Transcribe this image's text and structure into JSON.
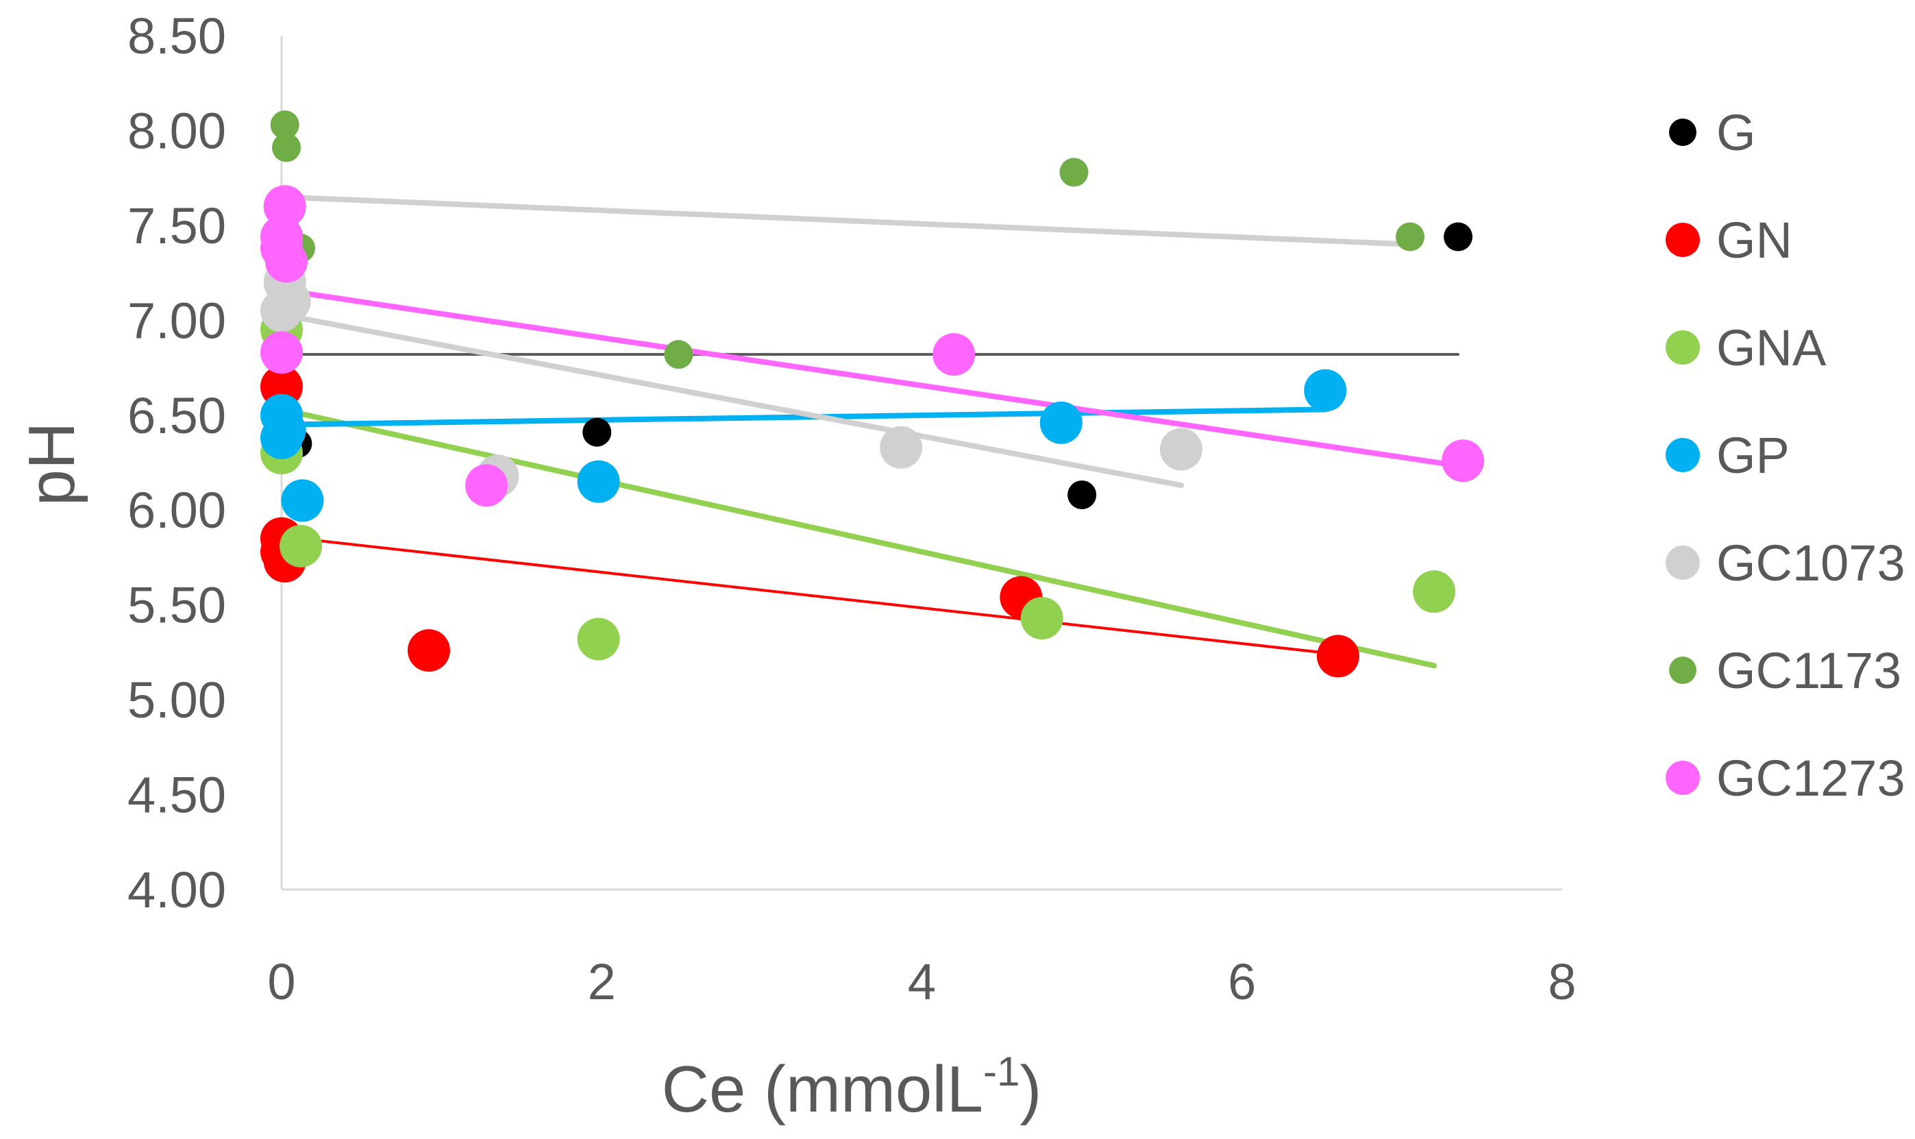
{
  "chart_data": {
    "type": "scatter",
    "title": "",
    "xlabel": "Ce (mmolL",
    "xlabel_sup": "-1",
    "xlabel_close": ")",
    "ylabel": "pH",
    "xlim": [
      0,
      8
    ],
    "ylim": [
      4.0,
      8.5
    ],
    "x_ticks": [
      0,
      2,
      4,
      6,
      8
    ],
    "x_tick_labels": [
      "0",
      "2",
      "4",
      "6",
      "8"
    ],
    "y_ticks": [
      4.0,
      4.5,
      5.0,
      5.5,
      6.0,
      6.5,
      7.0,
      7.5,
      8.0,
      8.5
    ],
    "y_tick_labels": [
      "4.00",
      "4.50",
      "5.00",
      "5.50",
      "6.00",
      "6.50",
      "7.00",
      "7.50",
      "8.00",
      "8.50"
    ],
    "grid": false,
    "legend_position": "right",
    "series": [
      {
        "name": "G",
        "color": "#000000",
        "marker_size": "small",
        "points": [
          [
            0.0,
            6.82
          ],
          [
            0.1,
            6.35
          ],
          [
            1.97,
            6.41
          ],
          [
            5.0,
            6.08
          ],
          [
            7.35,
            7.44
          ]
        ],
        "trend": {
          "x": [
            0.0,
            7.35
          ],
          "y": [
            6.82,
            6.82
          ],
          "color": "#595959",
          "width": "thin"
        }
      },
      {
        "name": "GN",
        "color": "#ff0000",
        "marker_size": "large",
        "points": [
          [
            0.0,
            6.65
          ],
          [
            0.0,
            5.85
          ],
          [
            0.0,
            5.78
          ],
          [
            0.02,
            5.73
          ],
          [
            0.92,
            5.26
          ],
          [
            4.62,
            5.54
          ],
          [
            6.6,
            5.23
          ]
        ],
        "trend": {
          "x": [
            0.0,
            6.6
          ],
          "y": [
            5.86,
            5.24
          ],
          "color": "#ff0000",
          "width": "thin"
        }
      },
      {
        "name": "GNA",
        "color": "#92d050",
        "marker_size": "large",
        "points": [
          [
            0.0,
            6.95
          ],
          [
            0.0,
            6.3
          ],
          [
            0.12,
            5.81
          ],
          [
            1.98,
            5.32
          ],
          [
            4.75,
            5.43
          ],
          [
            7.2,
            5.57
          ]
        ],
        "trend": {
          "x": [
            0.0,
            7.2
          ],
          "y": [
            6.53,
            5.18
          ],
          "color": "#92d050",
          "width": "medium"
        }
      },
      {
        "name": "GP",
        "color": "#00b0f0",
        "marker_size": "large",
        "points": [
          [
            0.0,
            6.5
          ],
          [
            0.02,
            6.42
          ],
          [
            0.0,
            6.38
          ],
          [
            0.13,
            6.05
          ],
          [
            1.98,
            6.15
          ],
          [
            4.87,
            6.46
          ],
          [
            6.52,
            6.63
          ]
        ],
        "trend": {
          "x": [
            0.0,
            6.52
          ],
          "y": [
            6.45,
            6.53
          ],
          "color": "#00b0f0",
          "width": "medium"
        }
      },
      {
        "name": "GC1073",
        "color": "#d0d0d0",
        "marker_size": "large",
        "points": [
          [
            0.02,
            7.2
          ],
          [
            0.05,
            7.1
          ],
          [
            0.0,
            7.05
          ],
          [
            1.35,
            6.18
          ],
          [
            3.87,
            6.33
          ],
          [
            5.62,
            6.32
          ]
        ],
        "trend": {
          "x": [
            0.0,
            5.62
          ],
          "y": [
            7.03,
            6.13
          ],
          "color": "#d0d0d0",
          "width": "medium"
        },
        "trend2": {
          "x": [
            0.0,
            7.05
          ],
          "y": [
            7.65,
            7.4
          ],
          "color": "#d0d0d0",
          "width": "medium"
        }
      },
      {
        "name": "GC1173",
        "color": "#70ad47",
        "marker_size": "small",
        "points": [
          [
            0.02,
            8.03
          ],
          [
            0.03,
            7.91
          ],
          [
            0.12,
            7.38
          ],
          [
            2.48,
            6.82
          ],
          [
            4.95,
            7.78
          ],
          [
            7.05,
            7.44
          ]
        ]
      },
      {
        "name": "GC1273",
        "color": "#ff66ff",
        "marker_size": "large",
        "points": [
          [
            0.02,
            7.6
          ],
          [
            0.0,
            7.44
          ],
          [
            0.0,
            7.38
          ],
          [
            0.03,
            7.31
          ],
          [
            0.0,
            6.83
          ],
          [
            1.28,
            6.13
          ],
          [
            4.2,
            6.82
          ],
          [
            7.38,
            6.26
          ]
        ],
        "trend": {
          "x": [
            0.0,
            7.38
          ],
          "y": [
            7.16,
            6.23
          ],
          "color": "#ff66ff",
          "width": "medium"
        }
      }
    ]
  }
}
